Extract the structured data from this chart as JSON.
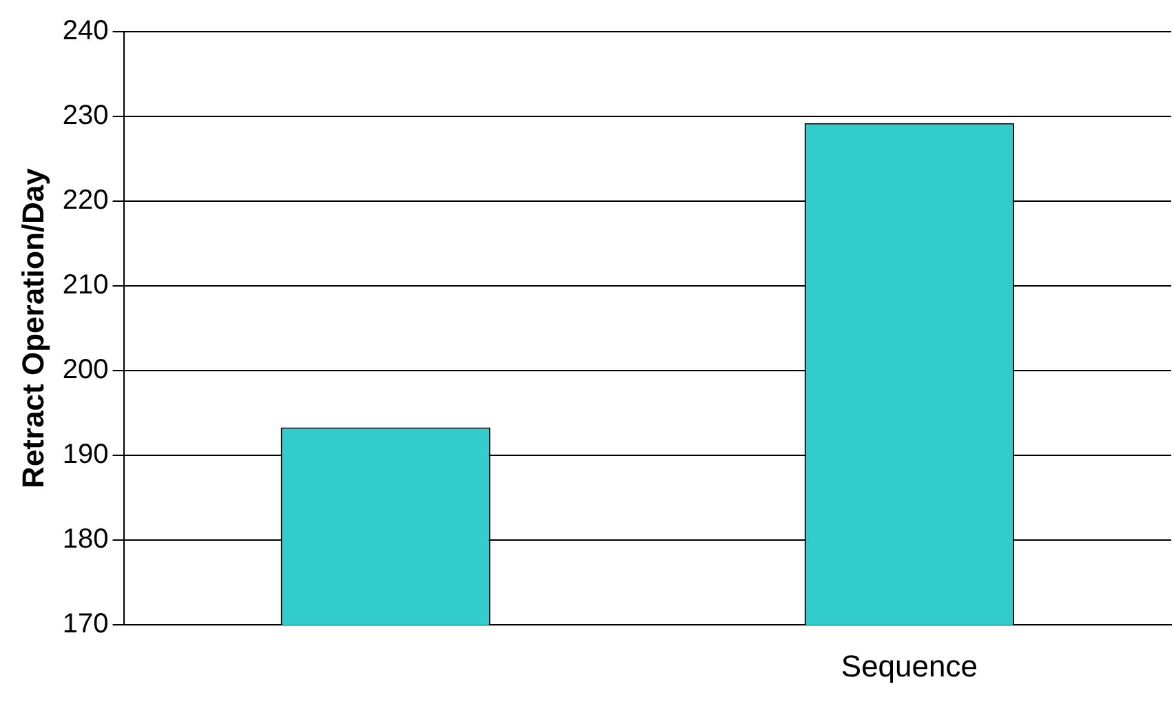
{
  "chart_data": {
    "type": "bar",
    "categories": [
      null,
      "Sequence"
    ],
    "values": [
      193.3,
      229.2
    ],
    "color": "#33cccc",
    "ylabel": "Retract Operation/Day",
    "ylim": [
      170,
      240
    ],
    "yticks": [
      170,
      180,
      190,
      200,
      210,
      220,
      230,
      240
    ],
    "grid": "y"
  }
}
